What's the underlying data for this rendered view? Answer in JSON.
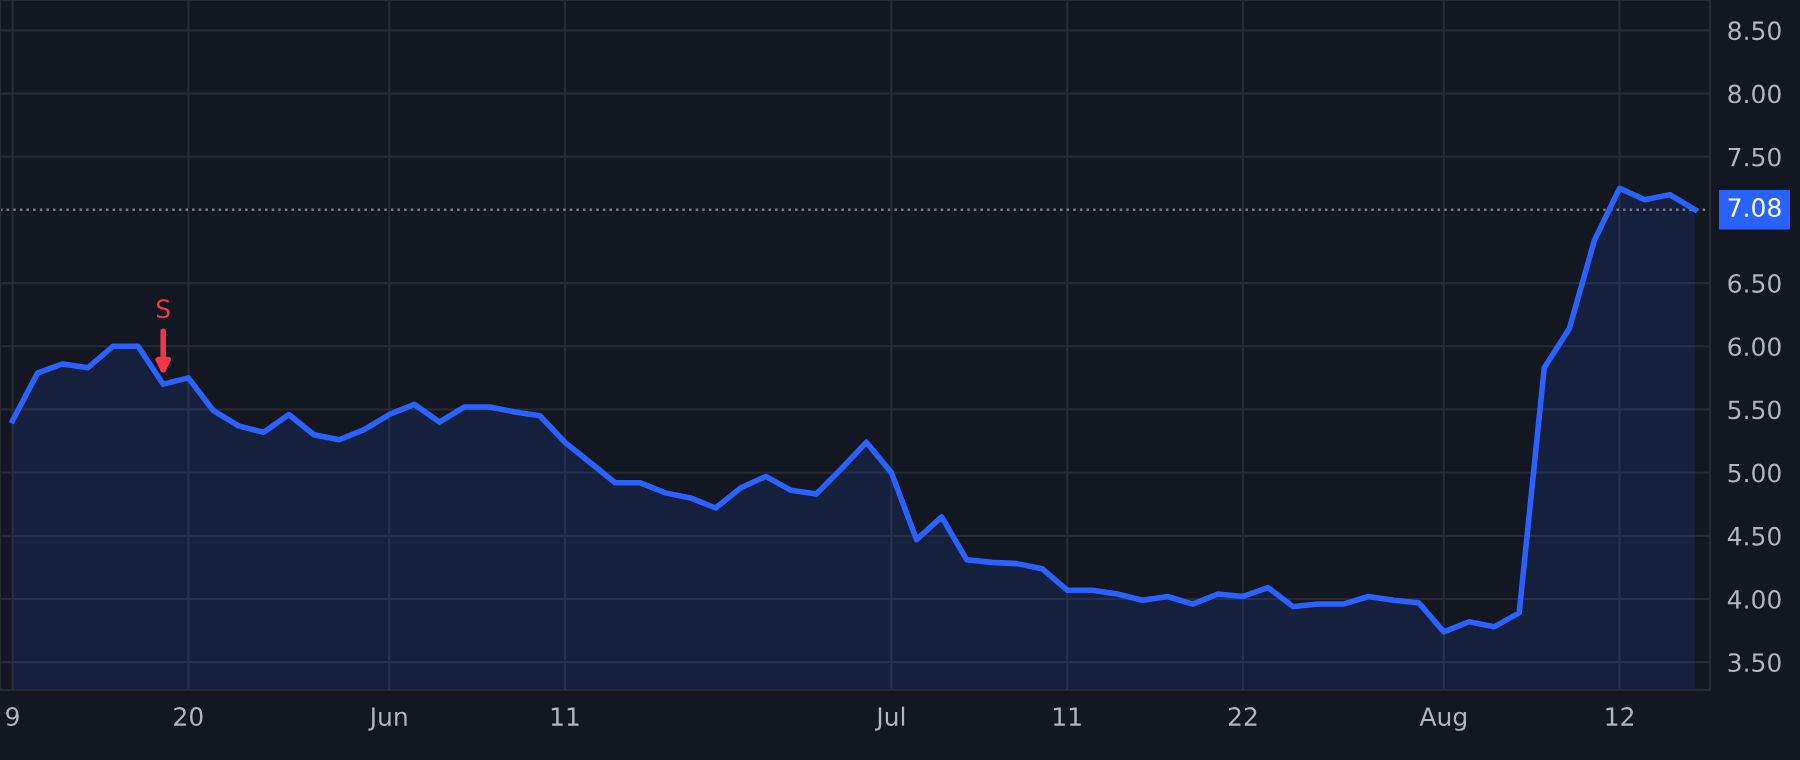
{
  "chart_data": {
    "type": "area",
    "categories": [
      "9",
      null,
      null,
      null,
      null,
      null,
      null,
      "20",
      null,
      null,
      null,
      null,
      null,
      null,
      null,
      "Jun",
      null,
      null,
      null,
      null,
      null,
      null,
      "11",
      null,
      null,
      null,
      null,
      null,
      null,
      null,
      null,
      null,
      null,
      null,
      null,
      "Jul",
      null,
      null,
      null,
      null,
      null,
      null,
      "11",
      null,
      null,
      null,
      null,
      null,
      null,
      "22",
      null,
      null,
      null,
      null,
      null,
      null,
      null,
      "Aug",
      null,
      null,
      null,
      null,
      null,
      null,
      "12",
      null,
      null,
      null
    ],
    "series": [
      {
        "color": "#2962ff",
        "values": [
          5.41,
          5.79,
          5.86,
          5.83,
          6.0,
          6.0,
          5.7,
          5.75,
          5.49,
          5.37,
          5.32,
          5.46,
          5.3,
          5.26,
          5.34,
          5.46,
          5.54,
          5.4,
          5.52,
          5.52,
          5.48,
          5.45,
          5.24,
          5.08,
          4.92,
          4.92,
          4.84,
          4.8,
          4.72,
          4.88,
          4.97,
          4.86,
          4.83,
          5.03,
          5.24,
          5.0,
          4.47,
          4.65,
          4.31,
          4.29,
          4.28,
          4.24,
          4.07,
          4.07,
          4.04,
          3.99,
          4.02,
          3.96,
          4.04,
          4.02,
          4.09,
          3.94,
          3.96,
          3.96,
          4.02,
          3.99,
          3.97,
          3.74,
          3.82,
          3.78,
          3.89,
          5.83,
          6.14,
          6.84,
          7.25,
          7.16,
          7.2,
          7.08
        ]
      }
    ],
    "ylim": [
      3.28,
      8.74
    ],
    "yticks": [
      {
        "value": 3.5,
        "label": "3.50"
      },
      {
        "value": 4,
        "label": "4.00"
      },
      {
        "value": 4.5,
        "label": "4.50"
      },
      {
        "value": 5,
        "label": "5.00"
      },
      {
        "value": 5.5,
        "label": "5.50"
      },
      {
        "value": 6,
        "label": "6.00"
      },
      {
        "value": 6.5,
        "label": "6.50"
      },
      {
        "value": 7.5,
        "label": "7.50"
      },
      {
        "value": 8,
        "label": "8.00"
      },
      {
        "value": 8.5,
        "label": "8.50"
      }
    ],
    "ref_lines": [
      {
        "axis": "y",
        "value": 7.08,
        "label": "7.08",
        "color": "#787b86",
        "line_style": "dotted"
      }
    ],
    "annotations": [
      {
        "text": "S",
        "y": 5.7
      }
    ],
    "grid": true,
    "marker": "none",
    "line_style": "solid"
  }
}
